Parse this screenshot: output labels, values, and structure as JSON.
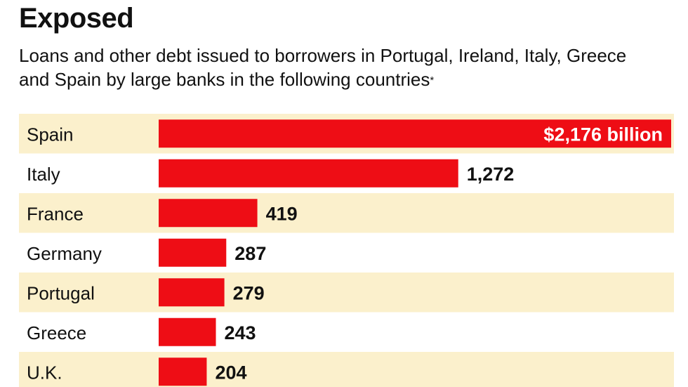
{
  "header": {
    "title": "Exposed",
    "subtitle": "Loans and other debt issued to borrowers in Portugal, Ireland, Italy, Greece and Spain by large banks in the following countries",
    "footnote_mark": "*"
  },
  "colors": {
    "bar": "#ee0d15",
    "band": "#fbf0cc",
    "text": "#111111",
    "inside_label": "#ffffff"
  },
  "chart_data": {
    "type": "bar",
    "orientation": "horizontal",
    "categories": [
      "Spain",
      "Italy",
      "France",
      "Germany",
      "Portugal",
      "Greece",
      "U.K."
    ],
    "values": [
      2176,
      1272,
      419,
      287,
      279,
      243,
      204
    ],
    "value_labels": [
      "$2,176 billion",
      "1,272",
      "419",
      "287",
      "279",
      "243",
      "204"
    ],
    "unit": "billion",
    "grid": false,
    "legend": "none"
  }
}
